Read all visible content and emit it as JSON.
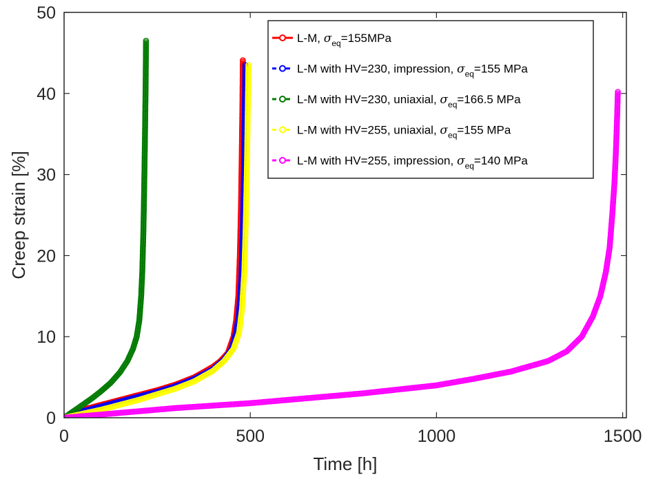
{
  "chart_data": {
    "type": "scatter",
    "xlabel": "Time [h]",
    "ylabel": "Creep strain [%]",
    "xlim": [
      0,
      1510
    ],
    "ylim": [
      0,
      50
    ],
    "xticks": [
      0,
      500,
      1000,
      1500
    ],
    "yticks": [
      0,
      10,
      20,
      30,
      40,
      50
    ],
    "xtick_labels": [
      "0",
      "500",
      "1000",
      "1500"
    ],
    "ytick_labels": [
      "0",
      "10",
      "20",
      "30",
      "40",
      "50"
    ],
    "grid": false,
    "legend_position": "top-right",
    "series": [
      {
        "name": "L-M, σeq=155MPa",
        "name_main": "L-M, ",
        "name_sym": "σ",
        "name_sub": "eq",
        "name_tail": "=155MPa",
        "color": "#ff0000",
        "marker": "circle",
        "line": "solid",
        "x": [
          0,
          50,
          100,
          150,
          200,
          250,
          300,
          350,
          400,
          420,
          440,
          455,
          462,
          468,
          472,
          475,
          477,
          479,
          480
        ],
        "y": [
          0,
          1.0,
          1.6,
          2.2,
          2.8,
          3.4,
          4.1,
          5.0,
          6.3,
          7.0,
          8.0,
          10.0,
          12.0,
          15.0,
          20.0,
          26.0,
          32.0,
          39.0,
          44.1
        ]
      },
      {
        "name": "L-M with HV=230, impression, σeq=155 MPa",
        "name_main": "L-M with HV=230, impression, ",
        "name_sym": "σ",
        "name_sub": "eq",
        "name_tail": "=155 MPa",
        "color": "#0000ff",
        "marker": "circle",
        "line": "dashed",
        "x": [
          0,
          50,
          100,
          150,
          200,
          250,
          300,
          350,
          400,
          430,
          450,
          462,
          470,
          476,
          480,
          483,
          485,
          487
        ],
        "y": [
          0,
          0.8,
          1.4,
          2.0,
          2.6,
          3.2,
          3.9,
          4.8,
          6.0,
          7.2,
          8.5,
          10.5,
          13.0,
          17.0,
          23.0,
          30.0,
          37.0,
          43.5
        ]
      },
      {
        "name": "L-M with HV=230, uniaxial, σeq=166.5 MPa",
        "name_main": "L-M with HV=230, uniaxial, ",
        "name_sym": "σ",
        "name_sub": "eq",
        "name_tail": "=166.5 MPa",
        "color": "#007a00",
        "marker": "circle",
        "line": "dashed",
        "x": [
          0,
          25,
          50,
          75,
          100,
          125,
          150,
          170,
          185,
          195,
          202,
          207,
          210,
          213,
          215,
          217,
          219,
          220
        ],
        "y": [
          0,
          0.8,
          1.6,
          2.4,
          3.3,
          4.3,
          5.6,
          7.0,
          8.5,
          10.0,
          12.0,
          15.0,
          18.0,
          23.0,
          28.0,
          34.0,
          41.0,
          46.5
        ]
      },
      {
        "name": "L-M with HV=255, uniaxial, σeq=155 MPa",
        "name_main": "L-M with HV=255, uniaxial, ",
        "name_sym": "σ",
        "name_sub": "eq",
        "name_tail": "=155 MPa",
        "color": "#ffff00",
        "marker": "circle",
        "line": "dashed",
        "x": [
          0,
          50,
          100,
          150,
          200,
          250,
          300,
          350,
          400,
          430,
          455,
          470,
          478,
          484,
          488,
          491,
          493,
          495
        ],
        "y": [
          0,
          0.5,
          1.0,
          1.6,
          2.2,
          2.9,
          3.6,
          4.5,
          5.8,
          7.0,
          8.5,
          10.5,
          13.5,
          18.0,
          24.0,
          31.0,
          37.0,
          43.5
        ]
      },
      {
        "name": "L-M with HV=255, impression, σeq=140 MPa",
        "name_main": "L-M with HV=255, impression, ",
        "name_sym": "σ",
        "name_sub": "eq",
        "name_tail": "=140 MPa",
        "color": "#ff00ff",
        "marker": "circle",
        "line": "dashed",
        "x": [
          0,
          100,
          200,
          300,
          400,
          500,
          600,
          700,
          800,
          900,
          1000,
          1100,
          1200,
          1300,
          1350,
          1390,
          1420,
          1440,
          1455,
          1465,
          1472,
          1478,
          1482,
          1485,
          1487
        ],
        "y": [
          0,
          0.4,
          0.8,
          1.2,
          1.5,
          1.8,
          2.2,
          2.6,
          3.0,
          3.5,
          4.0,
          4.8,
          5.7,
          7.0,
          8.2,
          10.0,
          12.5,
          15.0,
          18.0,
          21.0,
          25.0,
          29.0,
          33.0,
          37.0,
          40.2
        ]
      }
    ]
  }
}
